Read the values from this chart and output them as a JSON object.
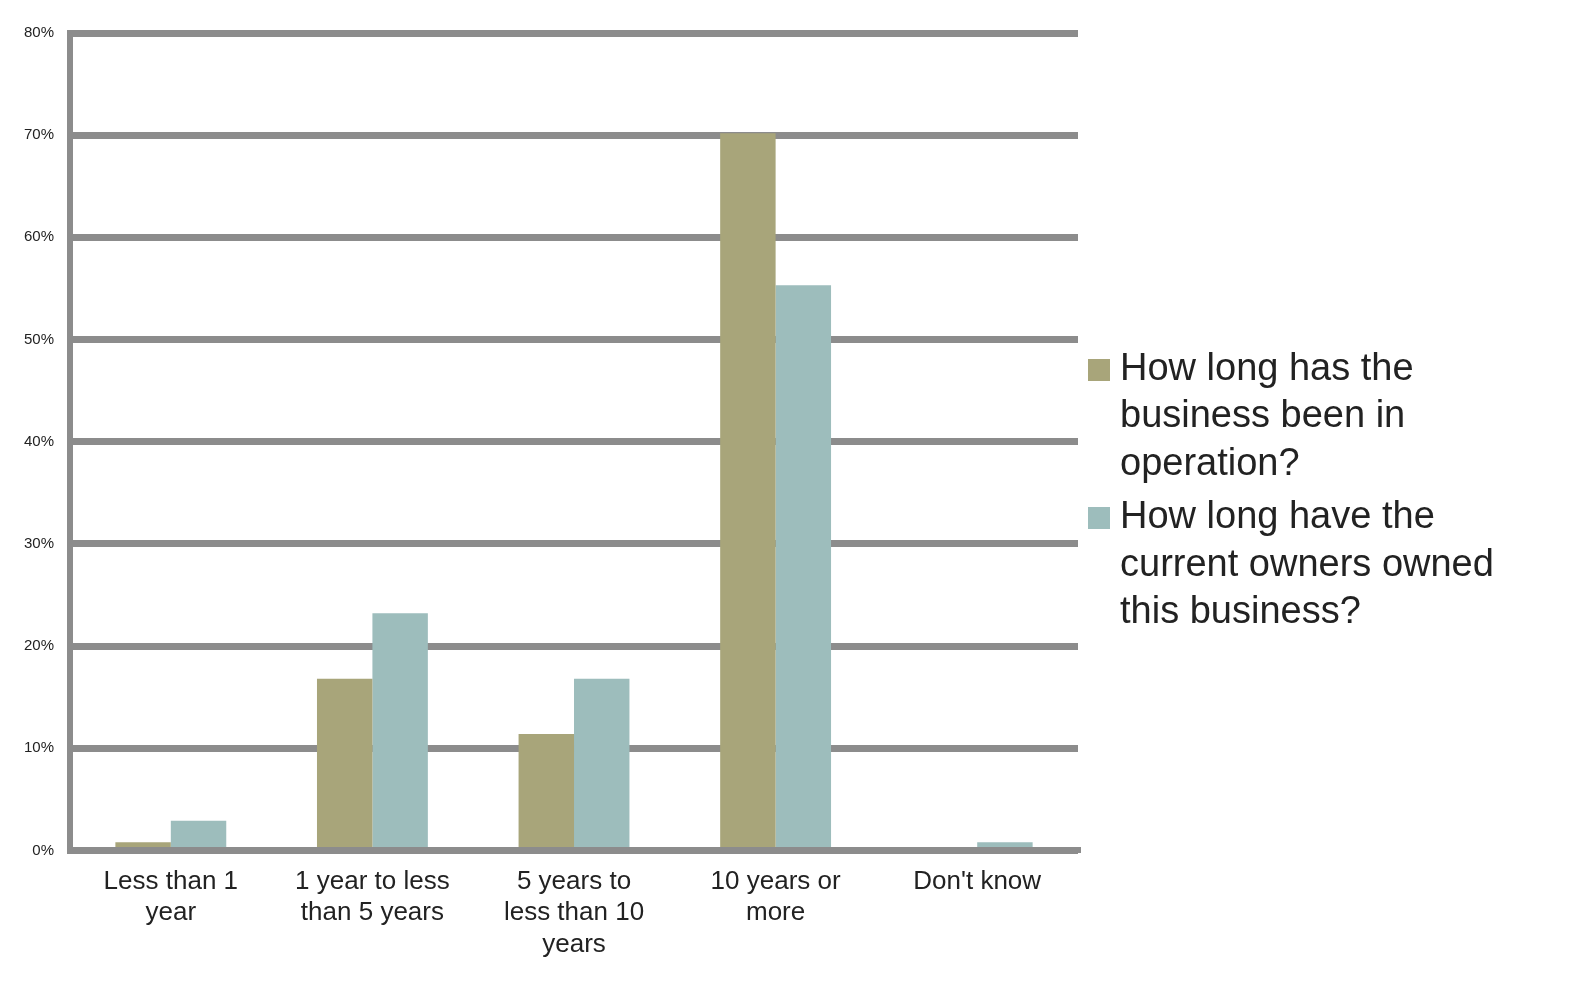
{
  "chart_data": {
    "type": "bar",
    "categories": [
      "Less than 1 year",
      "1 year to less than 5 years",
      "5 years to less than 10 years",
      "10 years or more",
      "Don't know"
    ],
    "series": [
      {
        "name": "How long has the business been in operation?",
        "color": "#a8a57a",
        "values": [
          0.8,
          16.8,
          11.4,
          70.2,
          0
        ]
      },
      {
        "name": "How long have the current owners owned this business?",
        "color": "#9dbdbc",
        "values": [
          2.9,
          23.2,
          16.8,
          55.3,
          0.8
        ]
      }
    ],
    "ylim": [
      0,
      80
    ],
    "yticks": [
      {
        "value": 0,
        "label": "0%"
      },
      {
        "value": 10,
        "label": "10%"
      },
      {
        "value": 20,
        "label": "20%"
      },
      {
        "value": 30,
        "label": "30%"
      },
      {
        "value": 40,
        "label": "40%"
      },
      {
        "value": 50,
        "label": "50%"
      },
      {
        "value": 60,
        "label": "60%"
      },
      {
        "value": 70,
        "label": "70%"
      },
      {
        "value": 80,
        "label": "80%"
      }
    ],
    "grid": "y",
    "legend": "right"
  }
}
